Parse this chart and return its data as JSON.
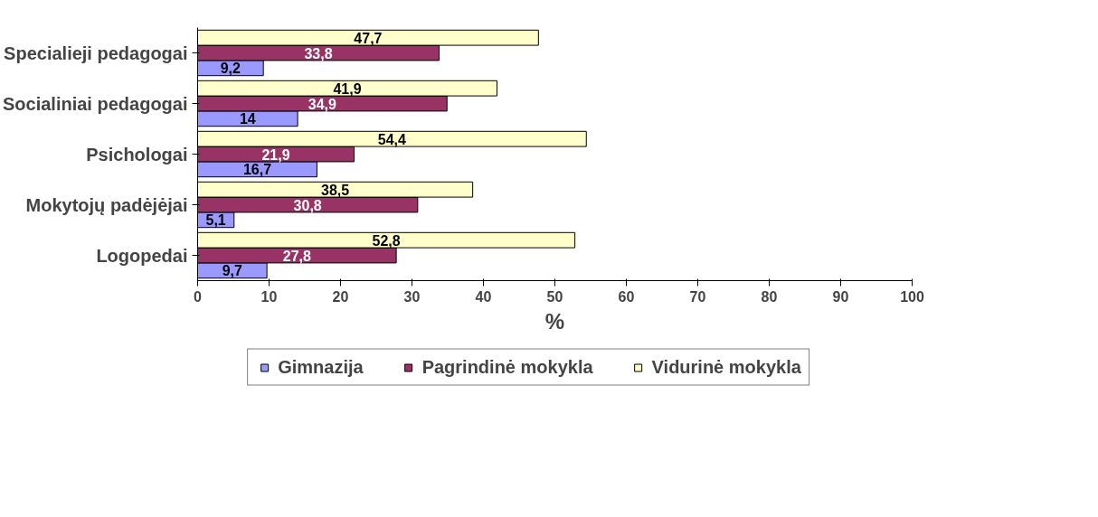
{
  "chart_data": {
    "type": "bar",
    "orientation": "horizontal",
    "categories": [
      "Specialieji pedagogai",
      "Socialiniai pedagogai",
      "Psichologai",
      "Mokytojų padėjėjai",
      "Logopedai"
    ],
    "series": [
      {
        "name": "Gimnazija",
        "color": "#9999ff",
        "values": [
          9.2,
          14,
          16.7,
          5.1,
          9.7
        ],
        "value_labels": [
          "9,2",
          "14",
          "16,7",
          "5,1",
          "9,7"
        ]
      },
      {
        "name": "Pagrindinė mokykla",
        "color": "#993366",
        "values": [
          33.8,
          34.9,
          21.9,
          30.8,
          27.8
        ],
        "value_labels": [
          "33,8",
          "34,9",
          "21,9",
          "30,8",
          "27,8"
        ]
      },
      {
        "name": "Vidurinė mokykla",
        "color": "#ffffcc",
        "values": [
          47.7,
          41.9,
          54.4,
          38.5,
          52.8
        ],
        "value_labels": [
          "47,7",
          "41,9",
          "54,4",
          "38,5",
          "52,8"
        ]
      }
    ],
    "xlim": [
      0,
      100
    ],
    "xticks": [
      0,
      10,
      20,
      30,
      40,
      50,
      60,
      70,
      80,
      90,
      100
    ],
    "xlabel": "%",
    "grid": false,
    "legend": "bottom"
  }
}
